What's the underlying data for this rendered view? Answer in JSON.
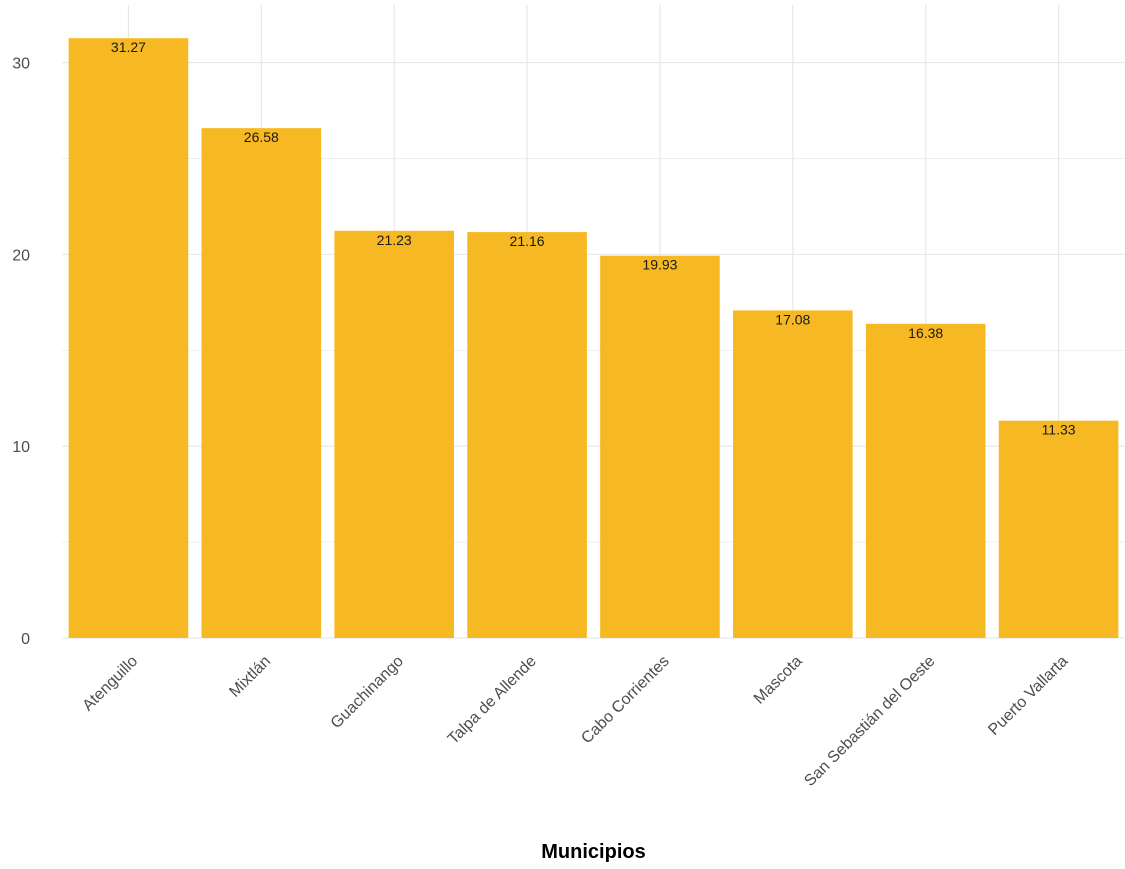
{
  "chart_data": {
    "type": "bar",
    "categories": [
      "Atenguillo",
      "Mixtlán",
      "Guachinango",
      "Talpa de Allende",
      "Cabo Corrientes",
      "Mascota",
      "San Sebastián del Oeste",
      "Puerto Vallarta"
    ],
    "values": [
      31.27,
      26.58,
      21.23,
      21.16,
      19.93,
      17.08,
      16.38,
      11.33
    ],
    "data_labels": [
      "31.27",
      "26.58",
      "21.23",
      "21.16",
      "19.93",
      "17.08",
      "16.38",
      "11.33"
    ],
    "title": "",
    "xlabel": "Municipios",
    "ylabel": "",
    "ylim": [
      0,
      33
    ],
    "yticks": [
      0,
      10,
      20,
      30
    ],
    "grid": true,
    "legend": "none",
    "colors": {
      "bar": "#F6B924",
      "grid": "#e6e6e6"
    }
  }
}
